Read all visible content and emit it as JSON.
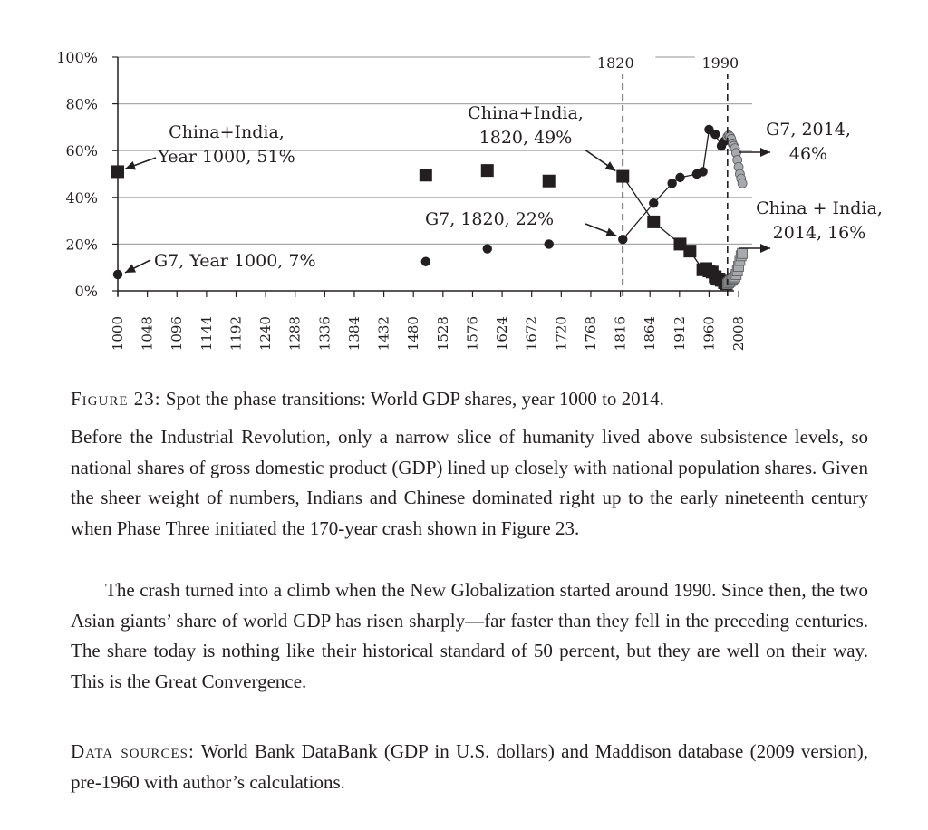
{
  "chart_data": {
    "type": "scatter",
    "ylim": [
      0,
      100
    ],
    "xlim": [
      1000,
      2030
    ],
    "y_ticks": [
      "100%",
      "80%",
      "60%",
      "40%",
      "20%",
      "0%"
    ],
    "x_tick_labels": [
      "1000",
      "1048",
      "1096",
      "1144",
      "1192",
      "1240",
      "1288",
      "1336",
      "1384",
      "1432",
      "1480",
      "1528",
      "1576",
      "1624",
      "1672",
      "1720",
      "1768",
      "1816",
      "1864",
      "1912",
      "1960",
      "2008"
    ],
    "grid": "horizontal",
    "series": [
      {
        "name": "China+India",
        "marker": "square",
        "color": "#231f20",
        "points": [
          [
            1000,
            51
          ],
          [
            1500,
            49.5
          ],
          [
            1600,
            51.5
          ],
          [
            1700,
            47
          ],
          [
            1820,
            49
          ],
          [
            1870,
            29.5
          ],
          [
            1913,
            20
          ],
          [
            1929,
            17
          ],
          [
            1950,
            9
          ],
          [
            1955,
            9.5
          ],
          [
            1960,
            8.5
          ],
          [
            1965,
            8
          ],
          [
            1970,
            6
          ],
          [
            1973,
            5
          ],
          [
            1976,
            5
          ],
          [
            1980,
            4.5
          ],
          [
            1985,
            3.5
          ],
          [
            1988,
            3
          ]
        ]
      },
      {
        "name": "China+India (1990-2014)",
        "marker": "square",
        "color": "#a7a9ac",
        "points": [
          [
            1990,
            3
          ],
          [
            1992,
            3.5
          ],
          [
            1994,
            4
          ],
          [
            1996,
            4.5
          ],
          [
            1998,
            5
          ],
          [
            2000,
            5.5
          ],
          [
            2002,
            6
          ],
          [
            2004,
            7
          ],
          [
            2006,
            8.5
          ],
          [
            2008,
            10.5
          ],
          [
            2010,
            13
          ],
          [
            2012,
            15
          ],
          [
            2014,
            16
          ]
        ]
      },
      {
        "name": "G7",
        "marker": "circle",
        "color": "#231f20",
        "points": [
          [
            1000,
            7
          ],
          [
            1500,
            12.5
          ],
          [
            1600,
            18
          ],
          [
            1700,
            20
          ],
          [
            1820,
            22
          ],
          [
            1870,
            37.5
          ],
          [
            1900,
            46
          ],
          [
            1913,
            48.5
          ],
          [
            1940,
            50
          ],
          [
            1950,
            51
          ],
          [
            1960,
            69
          ],
          [
            1970,
            67
          ],
          [
            1980,
            62
          ],
          [
            1985,
            64
          ]
        ]
      },
      {
        "name": "G7 (1990-2014)",
        "marker": "circle",
        "color": "#a7a9ac",
        "points": [
          [
            1990,
            66
          ],
          [
            1992,
            66.5
          ],
          [
            1994,
            66
          ],
          [
            1996,
            65
          ],
          [
            1998,
            63
          ],
          [
            2000,
            62
          ],
          [
            2002,
            61
          ],
          [
            2004,
            59
          ],
          [
            2006,
            56
          ],
          [
            2008,
            53
          ],
          [
            2010,
            50
          ],
          [
            2012,
            48
          ],
          [
            2014,
            46
          ]
        ]
      }
    ],
    "markers": [
      {
        "x": 1820,
        "label": "1820"
      },
      {
        "x": 1990,
        "label": "1990"
      }
    ],
    "annotations": {
      "ci_1000": [
        "China+India,",
        "Year 1000, 51%"
      ],
      "g7_1000": "G7, Year 1000, 7%",
      "ci_1820": [
        "China+India,",
        "1820, 49%"
      ],
      "g7_1820": "G7, 1820, 22%",
      "g7_2014": [
        "G7, 2014,",
        "46%"
      ],
      "ci_2014": [
        "China + India,",
        "2014, 16%"
      ]
    }
  },
  "caption": {
    "label": "Figure 23:",
    "title": "Spot the phase transitions: World GDP shares, year 1000 to 2014."
  },
  "body": {
    "paragraph1": "Before the Industrial Revolution, only a narrow slice of humanity lived above subsistence levels, so national shares of gross domestic product (GDP) lined up closely with national population shares. Given the sheer weight of numbers, Indians and Chinese dominated right up to the early nineteenth century when Phase Three initiated the 170-year crash shown in Figure 23.",
    "paragraph2": "The crash turned into a climb when the New Globalization started around 1990. Since then, the two Asian giants’ share of world GDP has risen sharply—far faster than they fell in the preceding centuries. The share today is nothing like their historical standard of 50 percent, but they are well on their way. This is the Great Convergence."
  },
  "sources": {
    "label": "Data sources:",
    "text": "World Bank DataBank (GDP in U.S. dollars) and Maddison database (2009 version), pre-1960 with author’s calculations."
  }
}
